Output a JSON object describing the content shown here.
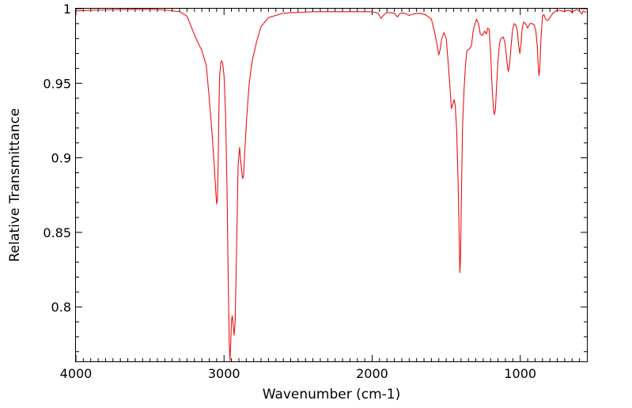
{
  "chart_data": {
    "type": "line",
    "title": "",
    "xlabel": "Wavenumber (cm-1)",
    "ylabel": "Relative Transmittance",
    "xlim": [
      4000,
      550
    ],
    "ylim": [
      0.7635,
      1.0
    ],
    "x_reversed": true,
    "grid": false,
    "legend": "none",
    "x_ticks": [
      {
        "value": 4000,
        "label": "4000"
      },
      {
        "value": 3000,
        "label": "3000"
      },
      {
        "value": 2000,
        "label": "2000"
      },
      {
        "value": 1000,
        "label": "1000"
      }
    ],
    "y_ticks": [
      {
        "value": 1.0,
        "label": "1"
      },
      {
        "value": 0.95,
        "label": "0.95"
      },
      {
        "value": 0.9,
        "label": "0.9"
      },
      {
        "value": 0.85,
        "label": "0.85"
      },
      {
        "value": 0.8,
        "label": "0.8"
      }
    ],
    "series": [
      {
        "color": "#ee1111",
        "points": [
          [
            4000,
            0.9985
          ],
          [
            3900,
            0.999
          ],
          [
            3800,
            0.9992
          ],
          [
            3700,
            0.9994
          ],
          [
            3600,
            0.9995
          ],
          [
            3500,
            0.9995
          ],
          [
            3400,
            0.9992
          ],
          [
            3300,
            0.998
          ],
          [
            3250,
            0.995
          ],
          [
            3210,
            0.985
          ],
          [
            3180,
            0.978
          ],
          [
            3150,
            0.972
          ],
          [
            3120,
            0.962
          ],
          [
            3100,
            0.94
          ],
          [
            3080,
            0.915
          ],
          [
            3065,
            0.893
          ],
          [
            3055,
            0.876
          ],
          [
            3050,
            0.869
          ],
          [
            3045,
            0.872
          ],
          [
            3040,
            0.895
          ],
          [
            3035,
            0.93
          ],
          [
            3030,
            0.955
          ],
          [
            3020,
            0.965
          ],
          [
            3010,
            0.964
          ],
          [
            3000,
            0.955
          ],
          [
            2990,
            0.93
          ],
          [
            2980,
            0.88
          ],
          [
            2972,
            0.82
          ],
          [
            2965,
            0.776
          ],
          [
            2960,
            0.764
          ],
          [
            2955,
            0.775
          ],
          [
            2950,
            0.79
          ],
          [
            2945,
            0.794
          ],
          [
            2940,
            0.79
          ],
          [
            2932,
            0.781
          ],
          [
            2925,
            0.79
          ],
          [
            2915,
            0.84
          ],
          [
            2905,
            0.895
          ],
          [
            2895,
            0.907
          ],
          [
            2885,
            0.895
          ],
          [
            2875,
            0.886
          ],
          [
            2868,
            0.888
          ],
          [
            2860,
            0.905
          ],
          [
            2845,
            0.93
          ],
          [
            2830,
            0.95
          ],
          [
            2810,
            0.965
          ],
          [
            2780,
            0.978
          ],
          [
            2750,
            0.988
          ],
          [
            2700,
            0.994
          ],
          [
            2600,
            0.997
          ],
          [
            2500,
            0.9975
          ],
          [
            2400,
            0.998
          ],
          [
            2300,
            0.998
          ],
          [
            2200,
            0.998
          ],
          [
            2100,
            0.998
          ],
          [
            2000,
            0.998
          ],
          [
            1960,
            0.997
          ],
          [
            1940,
            0.9935
          ],
          [
            1920,
            0.996
          ],
          [
            1900,
            0.9975
          ],
          [
            1850,
            0.997
          ],
          [
            1830,
            0.9945
          ],
          [
            1810,
            0.997
          ],
          [
            1780,
            0.997
          ],
          [
            1750,
            0.9955
          ],
          [
            1720,
            0.9965
          ],
          [
            1680,
            0.997
          ],
          [
            1640,
            0.996
          ],
          [
            1600,
            0.993
          ],
          [
            1580,
            0.985
          ],
          [
            1560,
            0.975
          ],
          [
            1550,
            0.969
          ],
          [
            1540,
            0.973
          ],
          [
            1530,
            0.98
          ],
          [
            1515,
            0.984
          ],
          [
            1500,
            0.98
          ],
          [
            1490,
            0.968
          ],
          [
            1475,
            0.948
          ],
          [
            1465,
            0.933
          ],
          [
            1455,
            0.936
          ],
          [
            1447,
            0.939
          ],
          [
            1440,
            0.936
          ],
          [
            1430,
            0.92
          ],
          [
            1420,
            0.885
          ],
          [
            1412,
            0.845
          ],
          [
            1408,
            0.823
          ],
          [
            1404,
            0.83
          ],
          [
            1398,
            0.87
          ],
          [
            1390,
            0.92
          ],
          [
            1380,
            0.945
          ],
          [
            1370,
            0.962
          ],
          [
            1360,
            0.972
          ],
          [
            1345,
            0.973
          ],
          [
            1330,
            0.975
          ],
          [
            1318,
            0.985
          ],
          [
            1305,
            0.99
          ],
          [
            1295,
            0.993
          ],
          [
            1282,
            0.99
          ],
          [
            1270,
            0.983
          ],
          [
            1255,
            0.982
          ],
          [
            1240,
            0.985
          ],
          [
            1228,
            0.983
          ],
          [
            1220,
            0.987
          ],
          [
            1210,
            0.986
          ],
          [
            1200,
            0.97
          ],
          [
            1190,
            0.947
          ],
          [
            1180,
            0.932
          ],
          [
            1175,
            0.929
          ],
          [
            1168,
            0.932
          ],
          [
            1160,
            0.948
          ],
          [
            1150,
            0.965
          ],
          [
            1140,
            0.977
          ],
          [
            1130,
            0.98
          ],
          [
            1115,
            0.981
          ],
          [
            1105,
            0.978
          ],
          [
            1095,
            0.97
          ],
          [
            1085,
            0.96
          ],
          [
            1080,
            0.958
          ],
          [
            1072,
            0.963
          ],
          [
            1062,
            0.975
          ],
          [
            1052,
            0.986
          ],
          [
            1040,
            0.99
          ],
          [
            1030,
            0.989
          ],
          [
            1020,
            0.985
          ],
          [
            1010,
            0.975
          ],
          [
            1003,
            0.97
          ],
          [
            996,
            0.975
          ],
          [
            988,
            0.986
          ],
          [
            978,
            0.991
          ],
          [
            965,
            0.99
          ],
          [
            950,
            0.987
          ],
          [
            935,
            0.99
          ],
          [
            920,
            0.99
          ],
          [
            905,
            0.989
          ],
          [
            895,
            0.985
          ],
          [
            885,
            0.975
          ],
          [
            878,
            0.96
          ],
          [
            873,
            0.955
          ],
          [
            868,
            0.96
          ],
          [
            860,
            0.98
          ],
          [
            850,
            0.995
          ],
          [
            840,
            0.996
          ],
          [
            830,
            0.993
          ],
          [
            815,
            0.992
          ],
          [
            800,
            0.994
          ],
          [
            780,
            0.997
          ],
          [
            760,
            0.9985
          ],
          [
            740,
            0.999
          ],
          [
            720,
            0.9985
          ],
          [
            700,
            0.998
          ],
          [
            680,
            0.999
          ],
          [
            660,
            0.9985
          ],
          [
            650,
            0.997
          ],
          [
            640,
            0.9985
          ],
          [
            620,
            0.9995
          ],
          [
            600,
            0.9985
          ],
          [
            585,
            0.9965
          ],
          [
            575,
            0.9985
          ],
          [
            565,
            0.998
          ],
          [
            555,
            0.9975
          ]
        ]
      }
    ]
  }
}
